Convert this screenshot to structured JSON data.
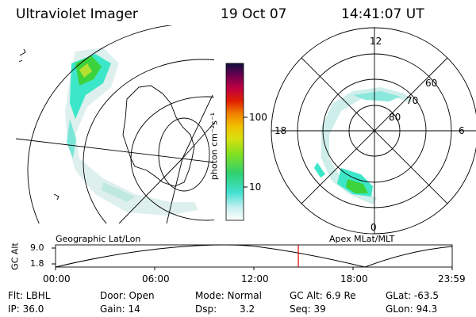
{
  "header": {
    "instrument": "Ultraviolet Imager",
    "date": "19 Oct 07",
    "time": "14:41:07 UT"
  },
  "colorbar": {
    "label": "photon cm⁻²s⁻¹",
    "ticks": [
      "100",
      "10"
    ]
  },
  "polar_labels": {
    "top": "12",
    "left": "18",
    "right": "6",
    "bottom": "0",
    "lat60": "60",
    "lat70": "70",
    "lat80": "80"
  },
  "timeline": {
    "left_label": "Geographic Lat/Lon",
    "right_label": "Apex MLat/MLT",
    "y_axis_title": "GC Alt",
    "y_ticks": [
      "9.0",
      "1.8"
    ],
    "x_ticks": [
      "00:00",
      "06:00",
      "12:00",
      "18:00",
      "23:59"
    ],
    "current_time_hours": 14.68
  },
  "status": {
    "flt": "Flt: LBHL",
    "ip": "IP: 36.0",
    "door": "Door: Open",
    "gain": "Gain: 14",
    "mode": "Mode: Normal",
    "dsp_label": "Dsp:",
    "dsp_value": "3.2",
    "gcalt": "GC Alt: 6.9 Re",
    "seq": "Seq: 39",
    "glat": "GLat: -63.5",
    "glon": "GLon: 94.3"
  },
  "colors": {
    "aurora_green": "#3cd23c",
    "aurora_cyan": "#3ce6c8",
    "aurora_light": "#cfeee8",
    "marker_red": "#e00000"
  }
}
